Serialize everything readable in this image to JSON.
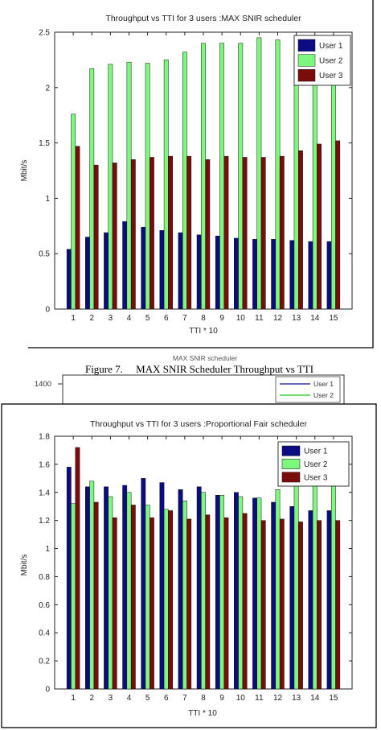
{
  "caption": "Figure 7.     MAX SNIR Scheduler Throughput vs TTI",
  "partial_chart": {
    "title": "MAX SNIR scheduler",
    "ytick": "1400",
    "legend": [
      "User 1",
      "User 2"
    ],
    "colors": [
      "#3a3aa8",
      "#3cd23c"
    ]
  },
  "chart_data": [
    {
      "type": "bar",
      "title": "Throughput vs TTI for  3 users :MAX SNIR scheduler",
      "xlabel": "TTI * 10",
      "ylabel": "Mbit/s",
      "ylim": [
        0,
        2.5
      ],
      "yticks": [
        "0",
        "0.5",
        "1",
        "1.5",
        "2",
        "2.5"
      ],
      "categories": [
        "1",
        "2",
        "3",
        "4",
        "5",
        "6",
        "7",
        "8",
        "9",
        "10",
        "11",
        "12",
        "13",
        "14",
        "15"
      ],
      "legend_position": "top-right",
      "grid": false,
      "series": [
        {
          "name": "User 1",
          "color": "#0b0b82",
          "values": [
            0.54,
            0.65,
            0.69,
            0.79,
            0.74,
            0.71,
            0.69,
            0.67,
            0.66,
            0.64,
            0.63,
            0.63,
            0.62,
            0.61,
            0.61
          ]
        },
        {
          "name": "User 2",
          "color": "#7cf87c",
          "values": [
            1.76,
            2.17,
            2.21,
            2.23,
            2.22,
            2.25,
            2.32,
            2.4,
            2.4,
            2.4,
            2.45,
            2.43,
            2.35,
            2.2,
            2.1
          ]
        },
        {
          "name": "User 3",
          "color": "#7a0c0c",
          "values": [
            1.47,
            1.3,
            1.32,
            1.35,
            1.37,
            1.38,
            1.38,
            1.35,
            1.38,
            1.37,
            1.37,
            1.38,
            1.43,
            1.49,
            1.52
          ]
        }
      ]
    },
    {
      "type": "bar",
      "title": "Throughput vs TTI for  3 users :Proportional Fair scheduler",
      "xlabel": "TTI * 10",
      "ylabel": "Mbit/s",
      "ylim": [
        0,
        1.8
      ],
      "yticks": [
        "0",
        "0.2",
        "0.4",
        "0.6",
        "0.8",
        "1",
        "1.2",
        "1.4",
        "1.6",
        "1.8"
      ],
      "categories": [
        "1",
        "2",
        "3",
        "4",
        "5",
        "6",
        "7",
        "8",
        "9",
        "10",
        "11",
        "12",
        "13",
        "14",
        "15"
      ],
      "legend_position": "top-right",
      "grid": false,
      "series": [
        {
          "name": "User 1",
          "color": "#0b0b82",
          "values": [
            1.58,
            1.44,
            1.44,
            1.45,
            1.5,
            1.47,
            1.42,
            1.44,
            1.38,
            1.4,
            1.36,
            1.33,
            1.3,
            1.27,
            1.27
          ]
        },
        {
          "name": "User 2",
          "color": "#7cf87c",
          "values": [
            1.32,
            1.48,
            1.37,
            1.4,
            1.31,
            1.28,
            1.34,
            1.4,
            1.38,
            1.37,
            1.36,
            1.42,
            1.46,
            1.46,
            1.46
          ]
        },
        {
          "name": "User 3",
          "color": "#7a0c0c",
          "values": [
            1.72,
            1.33,
            1.22,
            1.31,
            1.22,
            1.27,
            1.21,
            1.24,
            1.22,
            1.25,
            1.2,
            1.21,
            1.19,
            1.2,
            1.2
          ]
        }
      ]
    }
  ]
}
